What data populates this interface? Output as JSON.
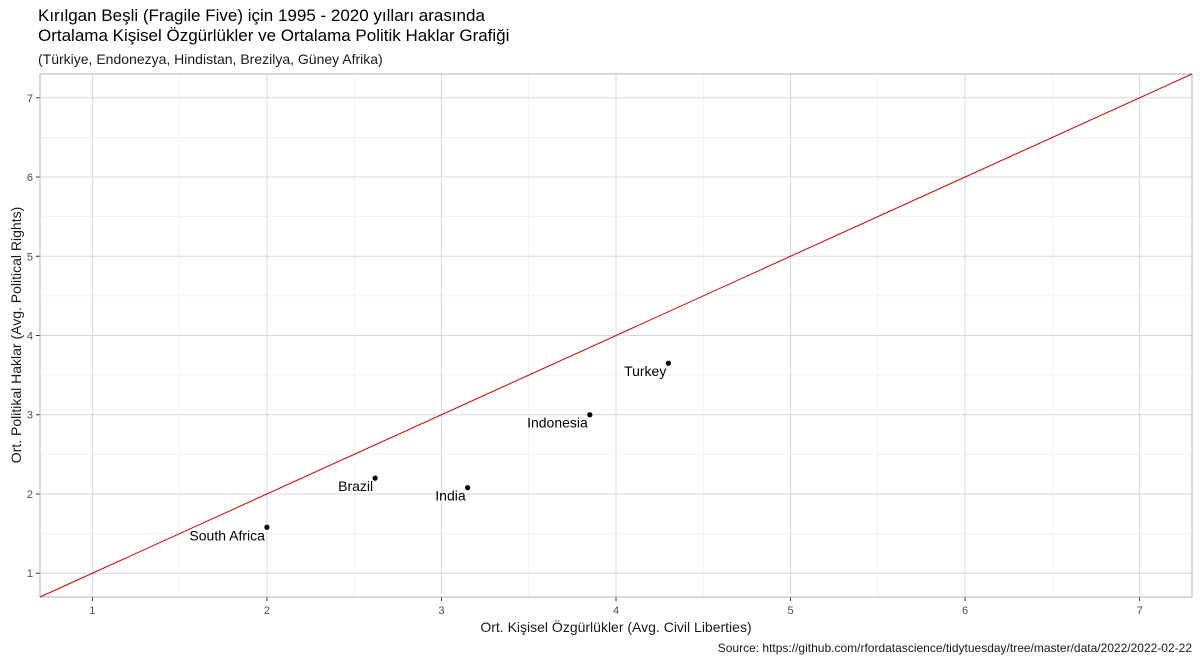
{
  "chart_data": {
    "type": "scatter",
    "title": "Kırılgan Beşli (Fragile Five) için 1995 - 2020 yılları arasında\nOrtalama Kişisel Özgürlükler ve Ortalama Politik Haklar Grafiği",
    "subtitle": "(Türkiye, Endonezya, Hindistan, Brezilya, Güney Afrika)",
    "xlabel": "Ort. Kişisel Özgürlükler (Avg. Civil Liberties)",
    "ylabel": "Ort. Politikal Haklar (Avg. Political Rights)",
    "caption": "Source: https://github.com/rfordatascience/tidytuesday/tree/master/data/2022/2022-02-22",
    "xlim": [
      0.7,
      7.3
    ],
    "ylim": [
      0.7,
      7.3
    ],
    "xticks": [
      1,
      2,
      3,
      4,
      5,
      6,
      7
    ],
    "yticks": [
      1,
      2,
      3,
      4,
      5,
      6,
      7
    ],
    "grid": true,
    "reference_line": {
      "slope": 1,
      "intercept": 0,
      "color": "#cc0000"
    },
    "points": [
      {
        "label": "Turkey",
        "x": 4.3,
        "y": 3.65
      },
      {
        "label": "Indonesia",
        "x": 3.85,
        "y": 3.0
      },
      {
        "label": "Brazil",
        "x": 2.62,
        "y": 2.2
      },
      {
        "label": "India",
        "x": 3.15,
        "y": 2.08
      },
      {
        "label": "South Africa",
        "x": 2.0,
        "y": 1.58
      }
    ]
  }
}
